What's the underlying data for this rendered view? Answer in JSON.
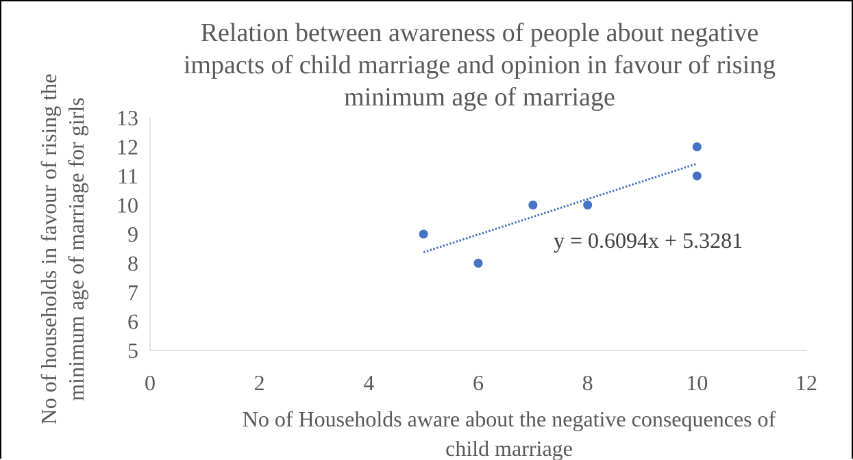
{
  "chart_data": {
    "type": "scatter",
    "title_lines": [
      "Relation between awareness of people about negative",
      "impacts of child marriage and opinion in favour of rising",
      "minimum age of marriage"
    ],
    "xlabel_lines": [
      "No of Households aware about the negative consequences of",
      "child marriage"
    ],
    "ylabel_lines": [
      "No of households in favour of rising the",
      "minimum age of marriage for girls"
    ],
    "xlim": [
      0,
      12
    ],
    "ylim": [
      5,
      13
    ],
    "x_ticks": [
      "0",
      "2",
      "4",
      "6",
      "8",
      "10",
      "12"
    ],
    "y_ticks": [
      "5",
      "6",
      "7",
      "8",
      "9",
      "10",
      "11",
      "12",
      "13"
    ],
    "grid": false,
    "series": [
      {
        "points": [
          {
            "x": 5,
            "y": 9
          },
          {
            "x": 6,
            "y": 8
          },
          {
            "x": 7,
            "y": 10
          },
          {
            "x": 8,
            "y": 10
          },
          {
            "x": 10,
            "y": 12
          },
          {
            "x": 10,
            "y": 11
          }
        ],
        "color": "#4472C4"
      }
    ],
    "trendline": {
      "kind": "linear",
      "slope": 0.6094,
      "intercept": 5.3281,
      "x_range": [
        5,
        10
      ],
      "equation_label": "y = 0.6094x + 5.3281",
      "color": "#4472C4",
      "style": "dotted"
    },
    "axis_color": "#D9D9D9"
  }
}
